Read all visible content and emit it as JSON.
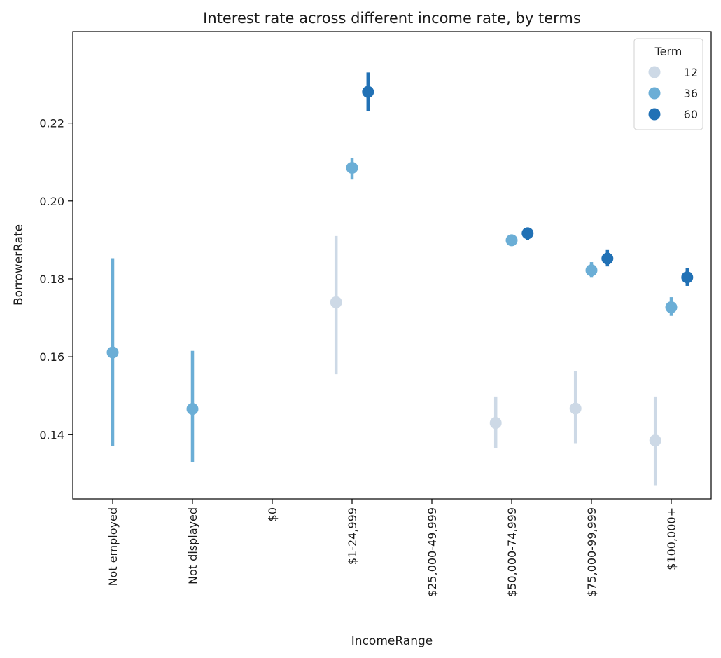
{
  "chart_data": {
    "type": "scatter",
    "subtype": "pointplot-with-error-bars",
    "title": "Interest rate across different income rate, by terms",
    "xlabel": "IncomeRange",
    "ylabel": "BorrowerRate",
    "categories": [
      "Not employed",
      "Not displayed",
      "$0",
      "$1-24,999",
      "$25,000-49,999",
      "$50,000-74,999",
      "$75,000-99,999",
      "$100,000+"
    ],
    "ylim": [
      0.1235,
      0.2435
    ],
    "yticks": [
      "0.14",
      "0.16",
      "0.18",
      "0.20",
      "0.22"
    ],
    "ytick_values": [
      0.14,
      0.16,
      0.18,
      0.2,
      0.22
    ],
    "grid": false,
    "legend": {
      "title": "Term",
      "placement": "top-right"
    },
    "series": [
      {
        "name": "12",
        "color": "#cdd9e6",
        "points": [
          {
            "category": "$1-24,999",
            "y": 0.174,
            "ci": [
              0.1555,
              0.191
            ]
          },
          {
            "category": "$50,000-74,999",
            "y": 0.143,
            "ci": [
              0.1365,
              0.1498
            ]
          },
          {
            "category": "$75,000-99,999",
            "y": 0.1467,
            "ci": [
              0.1378,
              0.1563
            ]
          },
          {
            "category": "$100,000+",
            "y": 0.1385,
            "ci": [
              0.127,
              0.1498
            ]
          }
        ]
      },
      {
        "name": "36",
        "color": "#6baed6",
        "points": [
          {
            "category": "Not employed",
            "y": 0.1611,
            "ci": [
              0.137,
              0.1853
            ]
          },
          {
            "category": "Not displayed",
            "y": 0.1466,
            "ci": [
              0.133,
              0.1615
            ]
          },
          {
            "category": "$1-24,999",
            "y": 0.2085,
            "ci": [
              0.2055,
              0.211
            ]
          },
          {
            "category": "$50,000-74,999",
            "y": 0.1899,
            "ci": [
              0.1888,
              0.1912
            ]
          },
          {
            "category": "$75,000-99,999",
            "y": 0.1822,
            "ci": [
              0.1803,
              0.1843
            ]
          },
          {
            "category": "$100,000+",
            "y": 0.1727,
            "ci": [
              0.1705,
              0.1753
            ]
          }
        ]
      },
      {
        "name": "60",
        "color": "#2171b5",
        "points": [
          {
            "category": "$1-24,999",
            "y": 0.228,
            "ci": [
              0.223,
              0.233
            ]
          },
          {
            "category": "$50,000-74,999",
            "y": 0.1917,
            "ci": [
              0.19,
              0.1932
            ]
          },
          {
            "category": "$75,000-99,999",
            "y": 0.1852,
            "ci": [
              0.1832,
              0.1874
            ]
          },
          {
            "category": "$100,000+",
            "y": 0.1804,
            "ci": [
              0.1782,
              0.1828
            ]
          }
        ]
      }
    ]
  }
}
